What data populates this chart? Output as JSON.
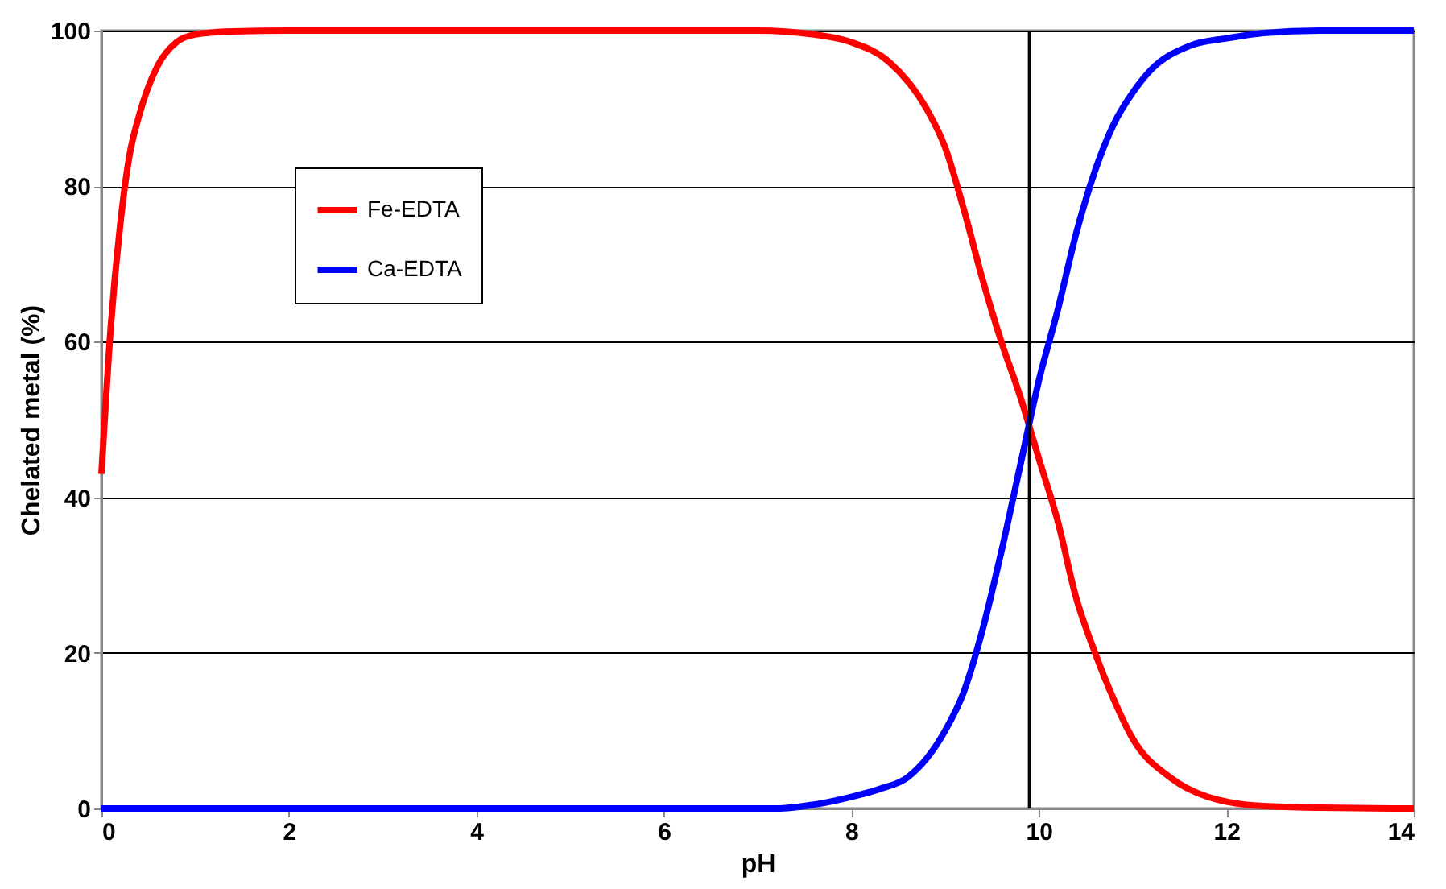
{
  "chart_data": {
    "type": "line",
    "xlabel": "pH",
    "ylabel": "Chelated metal (%)",
    "xlim": [
      0,
      14
    ],
    "xticks": [
      0,
      2,
      4,
      6,
      8,
      10,
      12,
      14
    ],
    "ylim": [
      0,
      100
    ],
    "yticks": [
      0,
      20,
      40,
      60,
      80,
      100
    ],
    "grid": "y",
    "legend": "top left",
    "marker": "none",
    "line_style": "solid",
    "series": [
      {
        "name": "Fe-EDTA",
        "color": "#ff0000",
        "x": [
          0,
          0.1,
          0.2,
          0.3,
          0.4,
          0.6,
          0.8,
          1.0,
          1.4,
          2,
          4,
          6,
          7,
          7.6,
          8,
          8.4,
          8.8,
          9.0,
          9.2,
          9.4,
          9.6,
          9.8,
          10,
          10.2,
          10.4,
          10.6,
          10.8,
          11,
          11.4,
          11.8,
          12.4,
          13,
          14
        ],
        "values": [
          43,
          62,
          75,
          84,
          89,
          95.5,
          98.5,
          99.5,
          99.9,
          100,
          100,
          100,
          100,
          99.5,
          98.5,
          96,
          90,
          85,
          77,
          68,
          60,
          53,
          45,
          37,
          27,
          20,
          14,
          9,
          4,
          1.5,
          0.3,
          0.1,
          0
        ]
      },
      {
        "name": "Ca-EDTA",
        "color": "#0000ff",
        "x": [
          0,
          2,
          4,
          6,
          7.2,
          7.6,
          8,
          8.3,
          8.6,
          9.0,
          9.2,
          9.4,
          9.6,
          9.8,
          10,
          10.2,
          10.4,
          10.6,
          10.8,
          11,
          11.2,
          11.6,
          12,
          12.4,
          13,
          14
        ],
        "values": [
          0,
          0,
          0,
          0,
          0,
          0.5,
          1.5,
          2.5,
          4,
          10,
          15,
          23,
          33,
          44,
          55,
          64,
          74,
          82,
          88,
          92,
          95,
          98,
          99,
          99.7,
          100,
          100
        ]
      }
    ],
    "ref_lines": [
      {
        "axis": "x",
        "value": 9.9,
        "color": "#000000",
        "line_style": "solid"
      }
    ]
  }
}
